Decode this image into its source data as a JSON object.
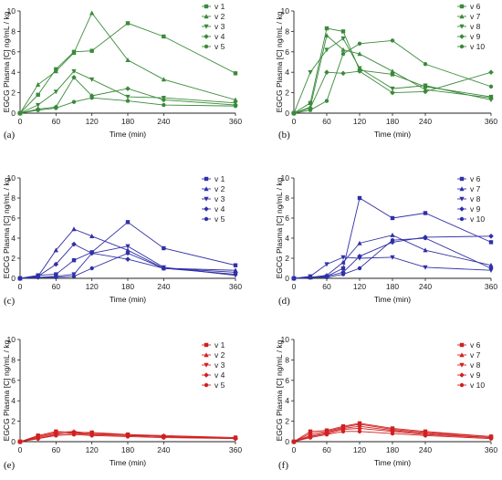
{
  "chart_data": [
    {
      "panel_label": "(a)",
      "type": "line",
      "color": "#3a8a3a",
      "xlabel": "Time (min)",
      "ylabel": "EGCG Plasma [C] ng/mL / kg",
      "x": [
        0,
        30,
        60,
        90,
        120,
        180,
        240,
        360
      ],
      "xticks": [
        0,
        60,
        120,
        180,
        240,
        360
      ],
      "yticks": [
        0,
        2,
        4,
        6,
        8,
        10
      ],
      "xlim": [
        0,
        360
      ],
      "ylim": [
        0,
        10
      ],
      "series": [
        {
          "name": "v 1",
          "values": [
            0,
            1.8,
            4.3,
            6.0,
            6.1,
            8.8,
            7.5,
            3.9
          ]
        },
        {
          "name": "v 2",
          "values": [
            0,
            2.8,
            4.1,
            5.9,
            9.8,
            5.2,
            3.3,
            1.3
          ]
        },
        {
          "name": "v 3",
          "values": [
            0,
            0.8,
            2.1,
            4.1,
            3.3,
            1.6,
            1.5,
            1.0
          ]
        },
        {
          "name": "v 4",
          "values": [
            0,
            0.4,
            0.6,
            3.5,
            1.7,
            2.4,
            1.3,
            0.8
          ]
        },
        {
          "name": "v 5",
          "values": [
            0,
            0.3,
            0.5,
            1.1,
            1.5,
            1.2,
            0.8,
            0.7
          ]
        }
      ]
    },
    {
      "panel_label": "(b)",
      "type": "line",
      "color": "#3a8a3a",
      "xlabel": "Time (min)",
      "ylabel": "EGCG Plasma [C] ng/mL / kg",
      "x": [
        0,
        30,
        60,
        90,
        120,
        180,
        240,
        360
      ],
      "xticks": [
        0,
        60,
        120,
        180,
        240,
        360
      ],
      "yticks": [
        0,
        2,
        4,
        6,
        8,
        10
      ],
      "xlim": [
        0,
        360
      ],
      "ylim": [
        0,
        10
      ],
      "series": [
        {
          "name": "v 6",
          "values": [
            0,
            1.0,
            8.3,
            8.0,
            4.2,
            3.8,
            2.6,
            1.6
          ]
        },
        {
          "name": "v 7",
          "values": [
            0,
            0.6,
            7.6,
            6.2,
            5.8,
            4.1,
            2.3,
            1.5
          ]
        },
        {
          "name": "v 8",
          "values": [
            0,
            4.0,
            6.2,
            7.3,
            4.4,
            2.4,
            2.7,
            1.3
          ]
        },
        {
          "name": "v 9",
          "values": [
            0,
            0.5,
            4.0,
            3.9,
            4.1,
            2.0,
            2.1,
            4.0
          ]
        },
        {
          "name": "v 10",
          "values": [
            0,
            0.3,
            1.2,
            5.8,
            6.8,
            7.1,
            4.8,
            2.6
          ]
        }
      ]
    },
    {
      "panel_label": "(c)",
      "type": "line",
      "color": "#3030a8",
      "xlabel": "Time (min)",
      "ylabel": "EGCG Plasma [C] ng/mL / kg",
      "x": [
        0,
        30,
        60,
        90,
        120,
        180,
        240,
        360
      ],
      "xticks": [
        0,
        60,
        120,
        180,
        240,
        360
      ],
      "yticks": [
        0,
        2,
        4,
        6,
        8,
        10
      ],
      "xlim": [
        0,
        360
      ],
      "ylim": [
        0,
        10
      ],
      "series": [
        {
          "name": "v 1",
          "values": [
            0,
            0.3,
            0.4,
            1.8,
            2.6,
            5.6,
            3.0,
            1.3
          ]
        },
        {
          "name": "v 2",
          "values": [
            0,
            0.2,
            2.8,
            4.9,
            4.2,
            2.8,
            1.0,
            0.8
          ]
        },
        {
          "name": "v 3",
          "values": [
            0,
            0.1,
            0.2,
            0.4,
            2.5,
            3.2,
            1.1,
            0.3
          ]
        },
        {
          "name": "v 4",
          "values": [
            0,
            0.2,
            1.4,
            3.4,
            2.5,
            1.9,
            1.0,
            0.6
          ]
        },
        {
          "name": "v 5",
          "values": [
            0,
            0.1,
            0.1,
            0.2,
            1.0,
            2.5,
            1.0,
            0.4
          ]
        }
      ]
    },
    {
      "panel_label": "(d)",
      "type": "line",
      "color": "#3030a8",
      "xlabel": "Time (min)",
      "ylabel": "EGCG Plasma [C] ng/mL / kg",
      "x": [
        0,
        30,
        60,
        90,
        120,
        180,
        240,
        360
      ],
      "xticks": [
        0,
        60,
        120,
        180,
        240,
        360
      ],
      "yticks": [
        0,
        2,
        4,
        6,
        8,
        10
      ],
      "xlim": [
        0,
        360
      ],
      "ylim": [
        0,
        10
      ],
      "series": [
        {
          "name": "v 6",
          "values": [
            0,
            0.1,
            0.2,
            1.0,
            8.0,
            6.0,
            6.5,
            3.6
          ]
        },
        {
          "name": "v 7",
          "values": [
            0,
            0.1,
            0.3,
            1.6,
            3.5,
            4.3,
            2.8,
            1.3
          ]
        },
        {
          "name": "v 8",
          "values": [
            0,
            0.2,
            1.4,
            2.1,
            2.0,
            2.1,
            1.1,
            0.8
          ]
        },
        {
          "name": "v 9",
          "values": [
            0,
            0.1,
            0.2,
            0.6,
            2.2,
            3.6,
            4.1,
            4.2
          ]
        },
        {
          "name": "v 10",
          "values": [
            0,
            0.1,
            0.1,
            0.4,
            1.0,
            3.8,
            4.0,
            1.0
          ]
        }
      ]
    },
    {
      "panel_label": "(e)",
      "type": "line",
      "color": "#d02020",
      "xlabel": "Time (min)",
      "ylabel": "EGCG Plasma [C] ng/mL / kg",
      "x": [
        0,
        30,
        60,
        90,
        120,
        180,
        240,
        360
      ],
      "xticks": [
        0,
        60,
        120,
        180,
        240,
        360
      ],
      "yticks": [
        0,
        2,
        4,
        6,
        8,
        10
      ],
      "xlim": [
        0,
        360
      ],
      "ylim": [
        0,
        10
      ],
      "series": [
        {
          "name": "v 1",
          "values": [
            0,
            0.6,
            1.0,
            0.9,
            0.9,
            0.7,
            0.5,
            0.4
          ]
        },
        {
          "name": "v 2",
          "values": [
            0,
            0.5,
            0.9,
            1.0,
            0.8,
            0.7,
            0.6,
            0.4
          ]
        },
        {
          "name": "v 3",
          "values": [
            0,
            0.4,
            0.8,
            0.8,
            0.7,
            0.6,
            0.5,
            0.3
          ]
        },
        {
          "name": "v 4",
          "values": [
            0,
            0.3,
            0.7,
            0.9,
            0.7,
            0.6,
            0.5,
            0.3
          ]
        },
        {
          "name": "v 5",
          "values": [
            0,
            0.3,
            0.6,
            0.7,
            0.6,
            0.5,
            0.4,
            0.3
          ]
        }
      ]
    },
    {
      "panel_label": "(f)",
      "type": "line",
      "color": "#d02020",
      "xlabel": "Time (min)",
      "ylabel": "EGCG Plasma [C] ng/mL / kg",
      "x": [
        0,
        30,
        60,
        90,
        120,
        180,
        240,
        360
      ],
      "xticks": [
        0,
        60,
        120,
        180,
        240,
        360
      ],
      "yticks": [
        0,
        2,
        4,
        6,
        8,
        10
      ],
      "xlim": [
        0,
        360
      ],
      "ylim": [
        0,
        10
      ],
      "series": [
        {
          "name": "v 6",
          "values": [
            0,
            1.0,
            1.1,
            1.5,
            1.8,
            1.3,
            1.0,
            0.5
          ]
        },
        {
          "name": "v 7",
          "values": [
            0,
            0.8,
            1.0,
            1.4,
            1.7,
            1.2,
            0.9,
            0.5
          ]
        },
        {
          "name": "v 8",
          "values": [
            0,
            0.6,
            0.9,
            1.3,
            1.5,
            1.1,
            0.8,
            0.4
          ]
        },
        {
          "name": "v 9",
          "values": [
            0,
            0.5,
            0.8,
            1.2,
            1.3,
            1.0,
            0.7,
            0.4
          ]
        },
        {
          "name": "v 10",
          "values": [
            0,
            0.4,
            0.7,
            1.0,
            1.0,
            0.8,
            0.6,
            0.3
          ]
        }
      ]
    }
  ]
}
